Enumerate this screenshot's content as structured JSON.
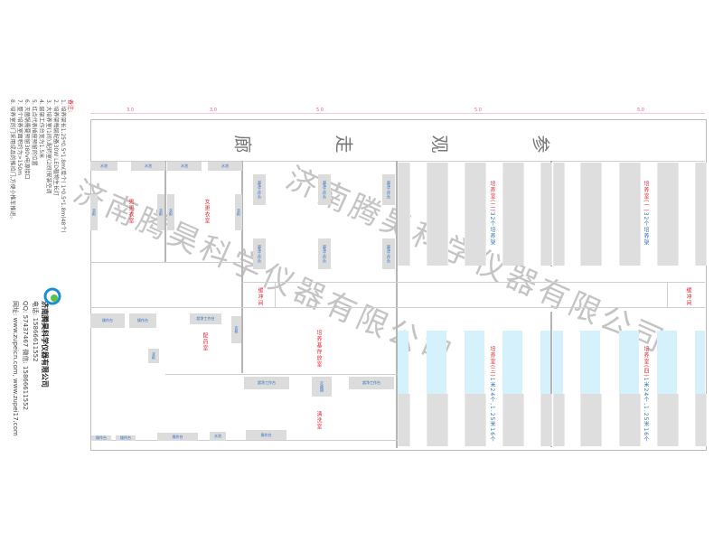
{
  "corridor_title": [
    "参",
    "观",
    "走",
    "廊"
  ],
  "dimensions": [
    "3.0",
    "3.0",
    "5.0",
    "5.0",
    "5.0"
  ],
  "notes": {
    "heading": "备注:",
    "items": [
      "1. 培养架长1.25*0.5*1.8m(单个) 1*0.5*1.8m(48个)",
      "2. 培养架每层配备30W LED植物生长灯",
      "3. 大培养室(1间),配药室(2间)安装空调",
      "4. 层架工作台宽为1.5米",
      "5. 红点代表插座预留的位置",
      "6. 灭菌锅需要预留380v电源接口",
      "7. 整个培养室面积约为>150m",
      "8. 培养室的门采用成品的推拉门,方便小推车推进。"
    ]
  },
  "company": {
    "name": "济南腾昊科学仪器有限公司",
    "phone": "电话: 15866611552",
    "qq": "QQ: 57437467  微信: 15866611552",
    "web": "网址: www.zupeicn.com, www.zupei17.com"
  },
  "watermark": "济南腾昊科学仪器有限公司",
  "rooms": {
    "male_locker": "男更衣室",
    "female_locker": "女更衣室",
    "culture1": {
      "name": "培养室(一)",
      "sub": "32个培养架"
    },
    "culture2": {
      "name": "培养室(二)",
      "sub": "32个培养架"
    },
    "culture3": {
      "name": "培养室(三)",
      "sub": "1米24个,1.25米16个"
    },
    "culture4": {
      "name": "培养室(四)",
      "sub": "1米24个,1.25米16个"
    },
    "dispensing": "配药室",
    "medium_storage": "培养基存放室",
    "washing": "清洗室",
    "buffer1": "缓冲间",
    "buffer2": "缓冲间"
  },
  "equipment": {
    "bench": "超净工作台",
    "autoclave": "灭菌锅",
    "sink": "水池",
    "cabinet": "衣柜",
    "table": "操作台"
  },
  "colors": {
    "label_red": "#e8262f",
    "label_blue": "#2a6fc0",
    "rack_grey": "#dedede",
    "light_blue": "#d5f1fb"
  }
}
